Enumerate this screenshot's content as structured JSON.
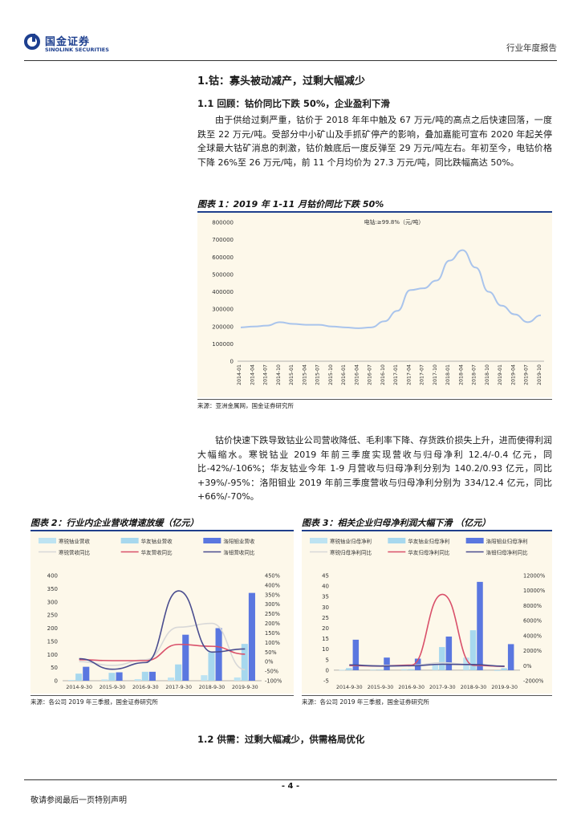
{
  "header": {
    "logo_cn": "国金证券",
    "logo_en": "SINOLINK SECURITIES",
    "report_type": "行业年度报告"
  },
  "section1": {
    "title": "1.钴：寡头被动减产，过剩大幅减少",
    "sub1_title": "1.1 回顾：钴价同比下跌 50%，企业盈利下滑",
    "para1": "由于供给过剩严重，钴价于 2018 年年中触及 67 万元/吨的高点之后快速回落，一度跌至 22 万元/吨。受部分中小矿山及手抓矿停产的影响，叠加嘉能可宣布 2020 年起关停全球最大钴矿消息的刺激，钴价触底后一度反弹至 29 万元/吨左右。年初至今，电钴价格下降 26%至 26 万元/吨，前 11 个月均价为 27.3 万元/吨，同比跌幅高达 50%。",
    "para2": "钴价快速下跌导致钴业公司营收降低、毛利率下降、存货跌价损失上升，进而使得利润大幅缩水。寒锐钴业 2019 年前三季度实现营收与归母净利 12.4/-0.4 亿元，同比-42%/-106%；华友钴业今年 1-9 月营收与归母净利分别为 140.2/0.93 亿元，同比+39%/-95%：洛阳钼业 2019 年前三季度营收与归母净利分别为 334/12.4 亿元，同比+66%/-70%。",
    "sub2_title": "1.2 供需：过剩大幅减少，供需格局优化"
  },
  "figure1": {
    "title": "图表 1：2019 年 1-11 月钴价同比下跌 50%",
    "source": "来源：亚洲金属网，国金证券研究所"
  },
  "figure2": {
    "title": "图表 2：行业内企业营收增速放缓（亿元）",
    "source": "来源：各公司 2019 年三季报，国金证券研究所"
  },
  "figure3": {
    "title": "图表 3：相关企业归母净利润大幅下滑 （亿元）",
    "source": "来源：各公司 2019 年三季报，国金证券研究所"
  },
  "footer": {
    "page": "- 4 -",
    "disclaimer": "敬请参阅最后一页特别声明"
  },
  "chart_data": [
    {
      "type": "line",
      "title": "电钴:≥99.8%（元/吨）",
      "series_color": "#a9c4ec",
      "x": [
        "2014-01",
        "2014-04",
        "2014-07",
        "2014-10",
        "2015-01",
        "2015-04",
        "2015-07",
        "2015-10",
        "2016-01",
        "2016-04",
        "2016-07",
        "2016-10",
        "2017-01",
        "2017-04",
        "2017-07",
        "2017-10",
        "2018-01",
        "2018-04",
        "2018-07",
        "2018-10",
        "2019-01",
        "2019-04",
        "2019-07",
        "2019-10"
      ],
      "x_ticks": [
        "2014-01",
        "2014-04",
        "2014-07",
        "2014-10",
        "2015-01",
        "2015-04",
        "2015-07",
        "2015-10",
        "2016-01",
        "2016-04",
        "2016-07",
        "2016-10",
        "2017-01",
        "2017-04",
        "2017-07",
        "2017-10",
        "2018-01",
        "2018-04",
        "2018-07",
        "2018-10",
        "2019-01",
        "2019-04",
        "2019-07",
        "2019-10"
      ],
      "values": [
        195000,
        200000,
        205000,
        225000,
        215000,
        210000,
        210000,
        200000,
        195000,
        190000,
        195000,
        230000,
        290000,
        410000,
        420000,
        465000,
        580000,
        640000,
        540000,
        400000,
        320000,
        270000,
        225000,
        265000
      ],
      "yticks": [
        0,
        100000,
        200000,
        300000,
        400000,
        500000,
        600000,
        700000,
        800000
      ],
      "ylim": [
        0,
        800000
      ]
    },
    {
      "type": "bar",
      "categories": [
        "2014-9-30",
        "2015-9-30",
        "2016-9-30",
        "2017-9-30",
        "2018-9-30",
        "2019-9-30"
      ],
      "series": [
        {
          "name": "寒锐钴业营收",
          "kind": "bar",
          "axis": "left",
          "color": "#bde3f2",
          "values": [
            3,
            5,
            6,
            12,
            21,
            12.4
          ]
        },
        {
          "name": "华友钴业营收",
          "kind": "bar",
          "axis": "left",
          "color": "#a7d8ee",
          "values": [
            27,
            30,
            34,
            62,
            108,
            140
          ]
        },
        {
          "name": "洛阳钼业营收",
          "kind": "bar",
          "axis": "left",
          "color": "#5a77e0",
          "values": [
            53,
            32,
            34,
            175,
            200,
            334
          ]
        },
        {
          "name": "寒锐营收同比",
          "kind": "line",
          "axis": "right",
          "color": "#d8d8d8",
          "values": [
            0,
            -20,
            10,
            180,
            200,
            -42
          ]
        },
        {
          "name": "华友营收同比",
          "kind": "line",
          "axis": "right",
          "color": "#d9506a",
          "values": [
            10,
            5,
            5,
            90,
            80,
            39
          ]
        },
        {
          "name": "洛钼营收同比",
          "kind": "line",
          "axis": "right",
          "color": "#4a4d8f",
          "values": [
            15,
            -40,
            -5,
            370,
            50,
            66
          ]
        }
      ],
      "yleft_ticks": [
        0,
        50,
        100,
        150,
        200,
        250,
        300,
        350,
        400
      ],
      "yright_ticks": [
        "-100%",
        "-50%",
        "0%",
        "50%",
        "100%",
        "150%",
        "200%",
        "250%",
        "300%",
        "350%",
        "400%",
        "450%"
      ],
      "ylim_left": [
        0,
        400
      ],
      "ylim_right": [
        -100,
        450
      ]
    },
    {
      "type": "bar",
      "categories": [
        "2014-9-30",
        "2015-9-30",
        "2016-9-30",
        "2017-9-30",
        "2018-9-30",
        "2019-9-30"
      ],
      "series": [
        {
          "name": "寒锐钴业归母净利",
          "kind": "bar",
          "axis": "left",
          "color": "#bde3f2",
          "values": [
            0.2,
            0.3,
            0.5,
            3,
            6,
            -0.4
          ]
        },
        {
          "name": "华友钴业归母净利",
          "kind": "bar",
          "axis": "left",
          "color": "#a7d8ee",
          "values": [
            1,
            0.3,
            0.5,
            11,
            19,
            0.93
          ]
        },
        {
          "name": "洛阳钼业归母净利",
          "kind": "bar",
          "axis": "left",
          "color": "#5a77e0",
          "values": [
            14.5,
            6,
            5.5,
            16,
            42,
            12.4
          ]
        },
        {
          "name": "寒锐归母净利同比",
          "kind": "line",
          "axis": "right",
          "color": "#d8d8d8",
          "values": [
            0,
            50,
            60,
            400,
            100,
            -106
          ]
        },
        {
          "name": "华友归母净利同比",
          "kind": "line",
          "axis": "right",
          "color": "#d9506a",
          "values": [
            20,
            -60,
            80,
            9500,
            50,
            -95
          ]
        },
        {
          "name": "洛钼归母净利同比",
          "kind": "line",
          "axis": "right",
          "color": "#4a4d8f",
          "values": [
            100,
            -50,
            -10,
            190,
            160,
            -70
          ]
        }
      ],
      "yleft_ticks": [
        -5,
        0,
        5,
        10,
        15,
        20,
        25,
        30,
        35,
        40,
        45
      ],
      "yright_ticks": [
        "-2000%",
        "0%",
        "2000%",
        "4000%",
        "6000%",
        "8000%",
        "10000%",
        "12000%"
      ],
      "ylim_left": [
        -5,
        45
      ],
      "ylim_right": [
        -2000,
        12000
      ]
    }
  ]
}
